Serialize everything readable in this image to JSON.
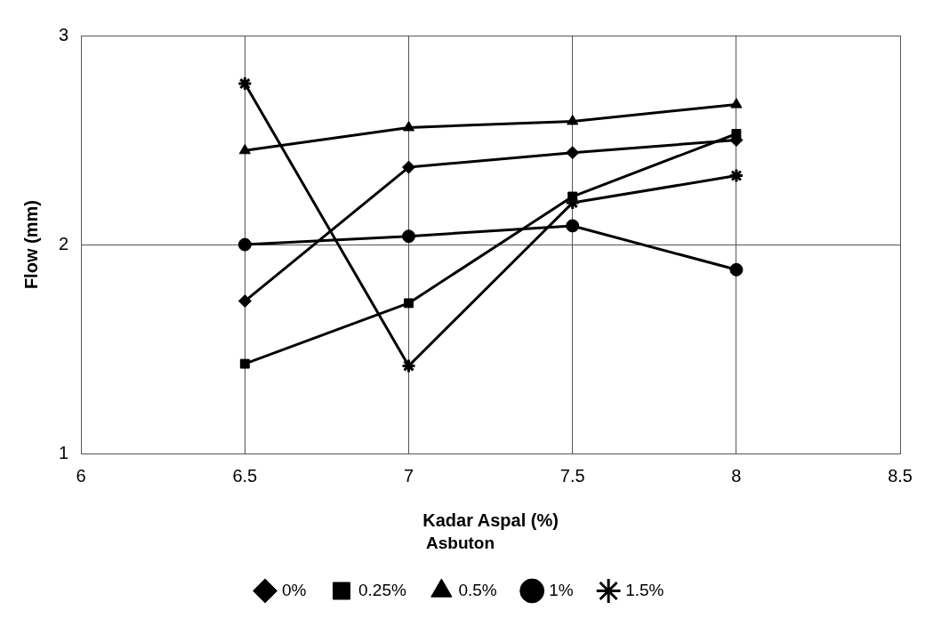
{
  "chart_data": {
    "type": "line",
    "xlabel": "Kadar Aspal (%)",
    "ylabel": "Flow (mm)",
    "legend_title": "Asbuton",
    "x": [
      6.5,
      7,
      7.5,
      8
    ],
    "series": [
      {
        "name": "0%",
        "color": "#000000",
        "marker": "diamond",
        "values": [
          1.73,
          2.37,
          2.44,
          2.5
        ]
      },
      {
        "name": "0.25%",
        "color": "#000000",
        "marker": "square",
        "values": [
          1.43,
          1.72,
          2.23,
          2.53
        ]
      },
      {
        "name": "0.5%",
        "color": "#000000",
        "marker": "triangle",
        "values": [
          2.45,
          2.56,
          2.59,
          2.67
        ]
      },
      {
        "name": "1%",
        "color": "#000000",
        "marker": "circle",
        "values": [
          2.0,
          2.04,
          2.09,
          1.88
        ]
      },
      {
        "name": "1.5%",
        "color": "#000000",
        "marker": "cross",
        "values": [
          2.77,
          1.42,
          2.2,
          2.33
        ]
      }
    ],
    "xlim": [
      6,
      8.5
    ],
    "xticks": [
      6,
      6.5,
      7,
      7.5,
      8,
      8.5
    ],
    "ylim": [
      1,
      3
    ],
    "yticks": [
      1,
      2,
      3
    ],
    "grid": true,
    "legend": "bottom",
    "line_style": "solid"
  }
}
